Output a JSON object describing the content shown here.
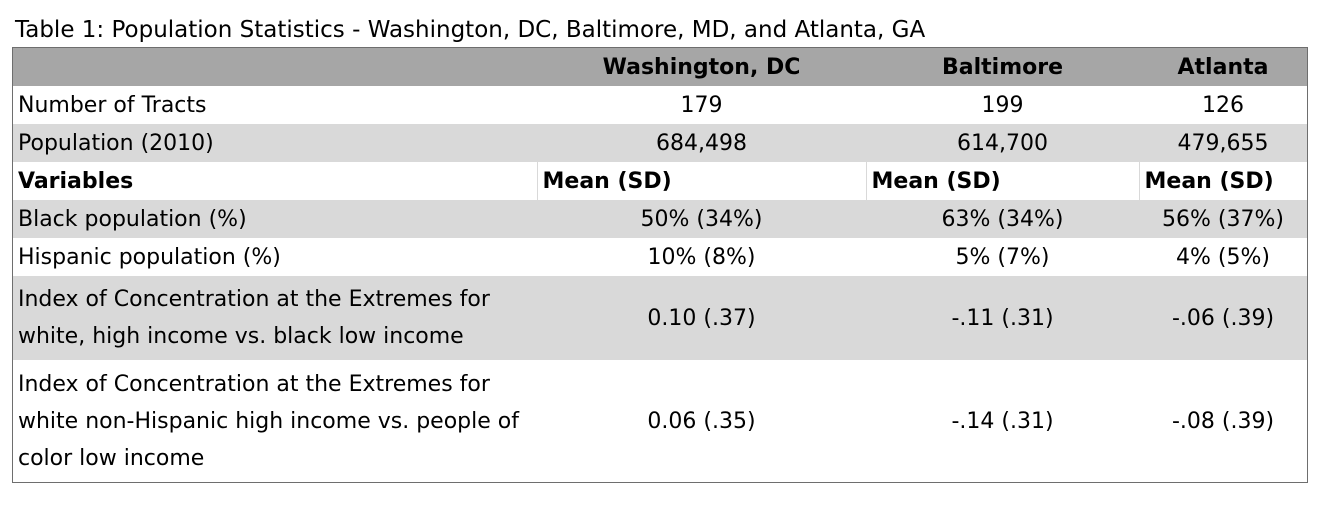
{
  "caption": "Table 1: Population Statistics - Washington, DC, Baltimore, MD, and Atlanta, GA",
  "header": {
    "col1": "",
    "col2": "Washington, DC",
    "col3": "Baltimore",
    "col4": "Atlanta"
  },
  "rows": [
    {
      "label": "Number of Tracts",
      "dc": "179",
      "baltimore": "199",
      "atlanta": "126"
    },
    {
      "label": "Population (2010)",
      "dc": "684,498",
      "baltimore": "614,700",
      "atlanta": "479,655"
    }
  ],
  "subheader": {
    "label": "Variables",
    "dc": "Mean (SD)",
    "baltimore": "Mean (SD)",
    "atlanta": "Mean (SD)"
  },
  "variables": [
    {
      "label": "Black population (%)",
      "dc": "50% (34%)",
      "baltimore": "63% (34%)",
      "atlanta": "56% (37%)"
    },
    {
      "label": "Hispanic population (%)",
      "dc": "10% (8%)",
      "baltimore": "5% (7%)",
      "atlanta": "4% (5%)"
    },
    {
      "label": "Index of Concentration at the Extremes for white, high income vs. black low income",
      "dc": "0.10 (.37)",
      "baltimore": "-.11 (.31)",
      "atlanta": "-.06 (.39)"
    },
    {
      "label": "Index of Concentration at the Extremes for white non-Hispanic high income vs. people of color low income",
      "dc": "0.06 (.35)",
      "baltimore": "-.14 (.31)",
      "atlanta": "-.08 (.39)"
    }
  ],
  "colors": {
    "header_bg": "#a6a6a6",
    "band_bg": "#d9d9d9",
    "border": "#6e6e6e"
  }
}
